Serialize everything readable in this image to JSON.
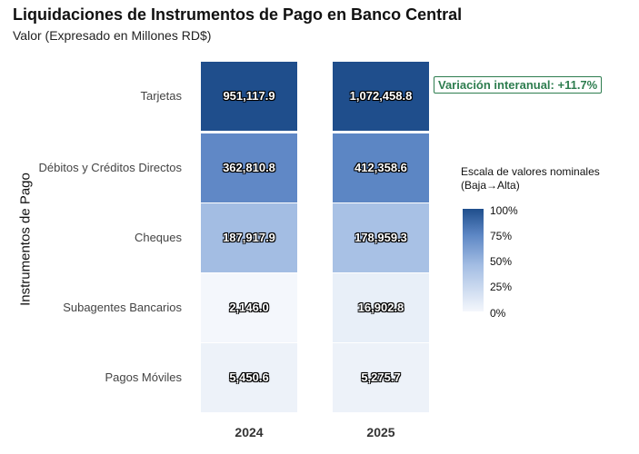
{
  "chart_data": {
    "type": "heatmap",
    "title": "Liquidaciones de Instrumentos de Pago en Banco Central",
    "subtitle": "Valor (Expresado en Millones RD$)",
    "ylabel": "Instrumentos de Pago",
    "xlabel": "",
    "categories_x": [
      "2024",
      "2025"
    ],
    "categories_y": [
      "Tarjetas",
      "Débitos y Créditos Directos",
      "Cheques",
      "Subagentes Bancarios",
      "Pagos Móviles"
    ],
    "values": [
      [
        951117.9,
        1072458.8
      ],
      [
        362810.8,
        412358.6
      ],
      [
        187917.9,
        178959.3
      ],
      [
        2146.0,
        16902.8
      ],
      [
        5450.6,
        5275.7
      ]
    ],
    "labels": [
      [
        "951,117.9",
        "1,072,458.8"
      ],
      [
        "362,810.8",
        "412,358.6"
      ],
      [
        "187,917.9",
        "178,959.3"
      ],
      [
        "2,146.0",
        "16,902.8"
      ],
      [
        "5,450.6",
        "5,275.7"
      ]
    ],
    "colors": [
      [
        "#1f4e8c",
        "#1f4e8c"
      ],
      [
        "#6088c6",
        "#5c86c4"
      ],
      [
        "#a3bde3",
        "#a8c1e5"
      ],
      [
        "#f4f7fc",
        "#e8eff8"
      ],
      [
        "#edf2f9",
        "#edf2f9"
      ]
    ],
    "annotation": "Variación interanual: +11.7%",
    "annotation_color": "#2e7d4f",
    "legend": {
      "title_line1": "Escala de valores nominales",
      "title_line2": "(Baja→Alta)",
      "ticks": [
        "100%",
        "75%",
        "50%",
        "25%",
        "0%"
      ],
      "position": "right",
      "low_color": "#f4f7fc",
      "high_color": "#1f4e8c"
    },
    "grid": false
  }
}
